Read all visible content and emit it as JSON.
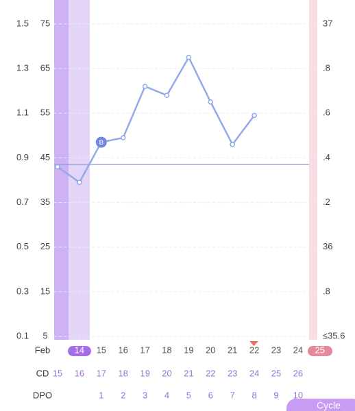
{
  "chart_data": {
    "type": "line",
    "color": "#92a9ea",
    "values": [
      36.36,
      36.29,
      36.47,
      36.49,
      36.72,
      36.68,
      36.85,
      36.65,
      36.46,
      36.59
    ],
    "coverline": 36.37,
    "annotation": "B",
    "ylim": [
      35.585,
      37.107
    ],
    "yticks": [
      37,
      {
        "value": 36.8,
        "label": ".8"
      },
      {
        "value": 36.6,
        "label": ".6"
      },
      {
        "value": 36.4,
        "label": ".4"
      },
      {
        "value": 36.2,
        "label": ".2"
      },
      36,
      {
        "value": 35.8,
        "label": ".8"
      },
      {
        "value": 35.6,
        "label": "≤35.6"
      }
    ],
    "left_axes": [
      {
        "lim": [
          0.0847,
          1.607
        ],
        "ticks": [
          1.5,
          1.3,
          1.1,
          0.9,
          0.7,
          0.5,
          0.3,
          0.1
        ]
      },
      {
        "lim": [
          4.23,
          80.36
        ],
        "ticks": [
          75,
          65,
          55,
          45,
          35,
          25,
          15,
          5
        ]
      }
    ],
    "rows": {
      "date": {
        "label": "Feb",
        "values": [
          "14",
          "15",
          "16",
          "17",
          "18",
          "19",
          "20",
          "21",
          "22",
          "23",
          "24",
          "25"
        ]
      },
      "cd": {
        "label": "CD",
        "values": [
          "15",
          "16",
          "17",
          "18",
          "19",
          "20",
          "21",
          "22",
          "23",
          "24",
          "25",
          "26"
        ]
      },
      "dpo": {
        "label": "DPO",
        "values": [
          null,
          null,
          "1",
          "2",
          "3",
          "4",
          "5",
          "6",
          "7",
          "8",
          "9",
          "10"
        ]
      }
    },
    "button": "Cycle"
  }
}
